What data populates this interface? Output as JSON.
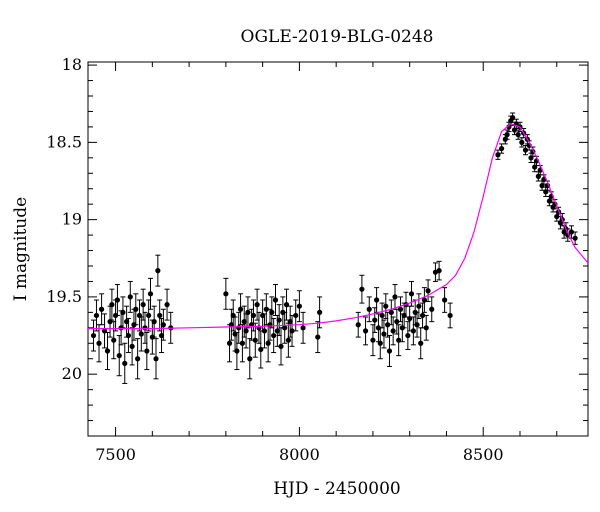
{
  "chart_data": {
    "type": "scatter",
    "title": "OGLE-2019-BLG-0248",
    "xlabel": "HJD - 2450000",
    "ylabel": "I magnitude",
    "xlim": [
      7425,
      8785
    ],
    "ylim": [
      17.98,
      20.4
    ],
    "y_inverted": true,
    "x_ticks": [
      7500,
      8000,
      8500
    ],
    "x_tick_labels": [
      "7500",
      "8000",
      "8500"
    ],
    "y_ticks": [
      18,
      18.5,
      19,
      19.5,
      20
    ],
    "y_tick_labels": [
      "18",
      "18.5",
      "19",
      "19.5",
      "20"
    ],
    "grid": false,
    "legend": "none",
    "colors": {
      "data": "#000000",
      "model": "#ff00ff"
    },
    "model": {
      "name": "",
      "x": [
        7425,
        7500,
        7600,
        7700,
        7800,
        7900,
        8000,
        8050,
        8100,
        8150,
        8200,
        8250,
        8300,
        8350,
        8400,
        8425,
        8450,
        8475,
        8500,
        8525,
        8550,
        8575,
        8600,
        8625,
        8650,
        8675,
        8700,
        8725,
        8750,
        8785
      ],
      "y": [
        19.705,
        19.705,
        19.705,
        19.7,
        19.695,
        19.69,
        19.68,
        19.67,
        19.655,
        19.635,
        19.61,
        19.58,
        19.54,
        19.49,
        19.42,
        19.36,
        19.25,
        19.08,
        18.85,
        18.6,
        18.43,
        18.38,
        18.4,
        18.5,
        18.62,
        18.76,
        18.91,
        19.06,
        19.18,
        19.28
      ]
    },
    "series": [
      {
        "name": "",
        "x": [
          7440,
          7448,
          7455,
          7462,
          7470,
          7478,
          7485,
          7490,
          7495,
          7500,
          7505,
          7510,
          7515,
          7520,
          7525,
          7530,
          7535,
          7540,
          7545,
          7550,
          7555,
          7560,
          7565,
          7570,
          7575,
          7580,
          7585,
          7590,
          7595,
          7600,
          7605,
          7610,
          7615,
          7620,
          7625,
          7630,
          7640,
          7650,
          7800,
          7810,
          7815,
          7820,
          7825,
          7830,
          7835,
          7840,
          7845,
          7850,
          7855,
          7860,
          7865,
          7870,
          7875,
          7880,
          7885,
          7890,
          7895,
          7900,
          7905,
          7910,
          7915,
          7920,
          7925,
          7930,
          7935,
          7940,
          7945,
          7950,
          7955,
          7960,
          7965,
          7970,
          7975,
          7980,
          7990,
          8000,
          8010,
          8050,
          8055,
          8160,
          8170,
          8180,
          8190,
          8200,
          8205,
          8210,
          8215,
          8220,
          8225,
          8230,
          8235,
          8240,
          8245,
          8250,
          8255,
          8260,
          8265,
          8270,
          8275,
          8280,
          8285,
          8290,
          8295,
          8300,
          8305,
          8310,
          8315,
          8320,
          8325,
          8330,
          8335,
          8340,
          8345,
          8350,
          8360,
          8370,
          8380,
          8395,
          8410,
          8540,
          8550,
          8560,
          8565,
          8570,
          8575,
          8580,
          8585,
          8590,
          8595,
          8600,
          8605,
          8610,
          8615,
          8620,
          8625,
          8630,
          8635,
          8640,
          8645,
          8650,
          8655,
          8660,
          8665,
          8670,
          8675,
          8680,
          8685,
          8690,
          8695,
          8700,
          8705,
          8710,
          8715,
          8720,
          8725,
          8730,
          8740,
          8750
        ],
        "y": [
          19.75,
          19.62,
          19.8,
          19.58,
          19.72,
          19.85,
          19.66,
          19.55,
          19.78,
          19.62,
          19.52,
          19.88,
          19.7,
          19.6,
          19.93,
          19.66,
          19.75,
          19.5,
          19.82,
          19.68,
          19.58,
          19.9,
          19.62,
          19.74,
          19.55,
          19.7,
          19.85,
          19.62,
          19.48,
          19.76,
          19.66,
          19.9,
          19.33,
          19.62,
          19.75,
          19.68,
          19.55,
          19.7,
          19.48,
          19.8,
          19.68,
          19.62,
          19.74,
          19.85,
          19.7,
          19.58,
          19.8,
          19.66,
          19.72,
          19.6,
          19.9,
          19.68,
          19.62,
          19.78,
          19.55,
          19.7,
          19.84,
          19.62,
          19.72,
          19.58,
          19.8,
          19.68,
          19.6,
          19.75,
          19.52,
          19.72,
          19.65,
          19.82,
          19.6,
          19.7,
          19.55,
          19.78,
          19.66,
          19.72,
          19.62,
          19.56,
          19.7,
          19.76,
          19.6,
          19.68,
          19.45,
          19.72,
          19.58,
          19.78,
          19.65,
          19.52,
          19.7,
          19.8,
          19.62,
          19.74,
          19.56,
          19.68,
          19.85,
          19.6,
          19.72,
          19.5,
          19.66,
          19.78,
          19.58,
          19.7,
          19.62,
          19.55,
          19.75,
          19.64,
          19.48,
          19.72,
          19.6,
          19.68,
          19.56,
          19.8,
          19.62,
          19.52,
          19.7,
          19.46,
          19.58,
          19.34,
          19.33,
          19.52,
          19.62,
          18.58,
          18.54,
          18.48,
          18.45,
          18.4,
          18.36,
          18.34,
          18.42,
          18.38,
          18.45,
          18.4,
          18.5,
          18.44,
          18.55,
          18.48,
          18.52,
          18.6,
          18.56,
          18.66,
          18.62,
          18.72,
          18.68,
          18.78,
          18.74,
          18.82,
          18.78,
          18.88,
          18.85,
          18.92,
          18.9,
          18.98,
          18.95,
          19.02,
          19.0,
          19.08,
          19.06,
          19.1,
          19.08,
          19.12
        ],
        "yerr": [
          0.1,
          0.1,
          0.12,
          0.1,
          0.11,
          0.12,
          0.1,
          0.1,
          0.12,
          0.1,
          0.1,
          0.13,
          0.11,
          0.1,
          0.13,
          0.1,
          0.11,
          0.1,
          0.12,
          0.1,
          0.1,
          0.13,
          0.1,
          0.11,
          0.1,
          0.1,
          0.12,
          0.1,
          0.1,
          0.11,
          0.1,
          0.13,
          0.1,
          0.1,
          0.11,
          0.1,
          0.1,
          0.1,
          0.1,
          0.12,
          0.1,
          0.1,
          0.11,
          0.12,
          0.1,
          0.1,
          0.12,
          0.1,
          0.11,
          0.1,
          0.13,
          0.1,
          0.1,
          0.11,
          0.1,
          0.1,
          0.12,
          0.1,
          0.11,
          0.1,
          0.12,
          0.1,
          0.1,
          0.11,
          0.1,
          0.1,
          0.1,
          0.12,
          0.1,
          0.1,
          0.1,
          0.11,
          0.1,
          0.1,
          0.1,
          0.1,
          0.1,
          0.1,
          0.1,
          0.08,
          0.09,
          0.09,
          0.08,
          0.1,
          0.08,
          0.08,
          0.09,
          0.1,
          0.08,
          0.09,
          0.08,
          0.08,
          0.1,
          0.08,
          0.09,
          0.08,
          0.08,
          0.1,
          0.08,
          0.09,
          0.08,
          0.08,
          0.09,
          0.08,
          0.08,
          0.09,
          0.08,
          0.08,
          0.08,
          0.1,
          0.08,
          0.08,
          0.08,
          0.07,
          0.08,
          0.06,
          0.06,
          0.08,
          0.08,
          0.03,
          0.03,
          0.03,
          0.03,
          0.03,
          0.03,
          0.03,
          0.03,
          0.03,
          0.03,
          0.03,
          0.03,
          0.03,
          0.03,
          0.03,
          0.03,
          0.03,
          0.03,
          0.03,
          0.03,
          0.03,
          0.03,
          0.03,
          0.03,
          0.03,
          0.03,
          0.03,
          0.03,
          0.03,
          0.03,
          0.03,
          0.03,
          0.04,
          0.04,
          0.04,
          0.04,
          0.04,
          0.04,
          0.04
        ]
      }
    ]
  }
}
